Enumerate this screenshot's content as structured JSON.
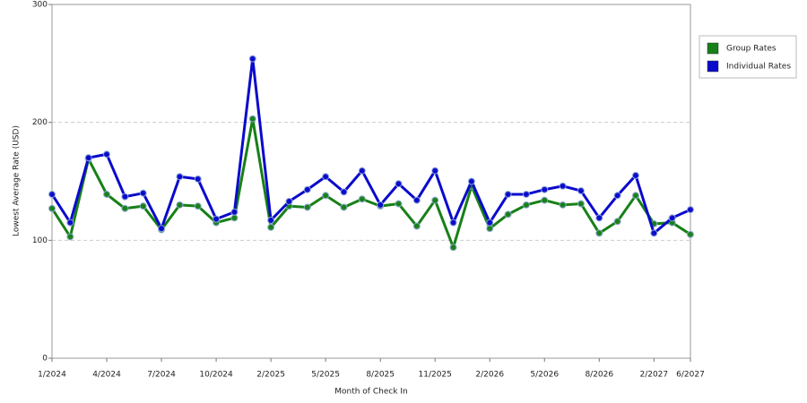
{
  "chart_data": {
    "type": "line",
    "xlabel": "Month of Check In",
    "ylabel": "Lowest Average Rate (USD)",
    "categories": [
      "1/2024",
      null,
      null,
      "4/2024",
      null,
      null,
      "7/2024",
      null,
      null,
      "10/2024",
      null,
      null,
      "2/2025",
      null,
      null,
      "5/2025",
      null,
      null,
      "8/2025",
      null,
      null,
      "11/2025",
      null,
      null,
      "2/2026",
      null,
      null,
      "5/2026",
      null,
      null,
      "8/2026",
      null,
      null,
      "2/2027",
      null,
      "6/2027"
    ],
    "series": [
      {
        "name": "Group Rates",
        "color": "#178017",
        "values": [
          127,
          103,
          169,
          139,
          127,
          129,
          109,
          130,
          129,
          115,
          119,
          203,
          111,
          129,
          128,
          138,
          128,
          135,
          129,
          131,
          112,
          134,
          94,
          146,
          110,
          122,
          130,
          134,
          130,
          131,
          106,
          116,
          138,
          114,
          115,
          105
        ]
      },
      {
        "name": "Individual Rates",
        "color": "#0a0acc",
        "values": [
          139,
          115,
          170,
          173,
          137,
          140,
          110,
          154,
          152,
          118,
          124,
          254,
          117,
          133,
          143,
          154,
          141,
          159,
          130,
          148,
          134,
          159,
          115,
          150,
          115,
          139,
          139,
          143,
          146,
          142,
          119,
          138,
          155,
          106,
          119,
          126
        ]
      }
    ],
    "ylim": [
      0,
      300
    ],
    "yticks": [
      0,
      100,
      200,
      300
    ],
    "grid": true,
    "legend": "right"
  }
}
